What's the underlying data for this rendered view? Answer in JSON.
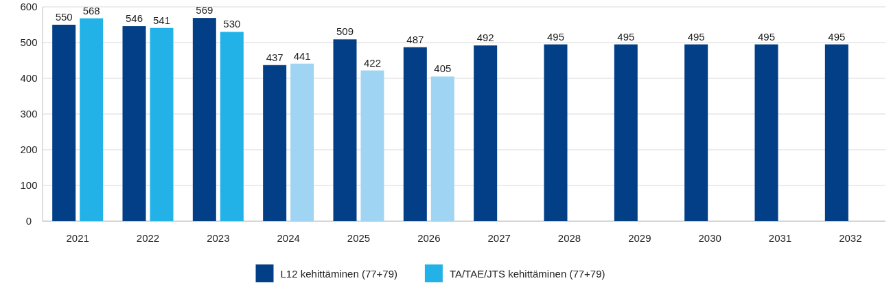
{
  "chart_data": {
    "type": "bar",
    "categories": [
      "2021",
      "2022",
      "2023",
      "2024",
      "2025",
      "2026",
      "2027",
      "2028",
      "2029",
      "2030",
      "2031",
      "2032"
    ],
    "series": [
      {
        "name": "L12 kehittäminen (77+79)",
        "color": "#033f86",
        "values": [
          550,
          546,
          569,
          437,
          509,
          487,
          492,
          495,
          495,
          495,
          495,
          495
        ]
      },
      {
        "name": "TA/TAE/JTS kehittäminen (77+79)",
        "color": "#22b2e8",
        "colors": [
          "#22b2e8",
          "#22b2e8",
          "#22b2e8",
          "#9fd4f3",
          "#9fd4f3",
          "#9fd4f3",
          null,
          null,
          null,
          null,
          null,
          null
        ],
        "values": [
          568,
          541,
          530,
          441,
          422,
          405,
          null,
          null,
          null,
          null,
          null,
          null
        ]
      }
    ],
    "ylim": [
      0,
      600
    ],
    "yticks": [
      0,
      100,
      200,
      300,
      400,
      500,
      600
    ],
    "grid": "y",
    "legend": "bottom",
    "data_labels": true
  }
}
